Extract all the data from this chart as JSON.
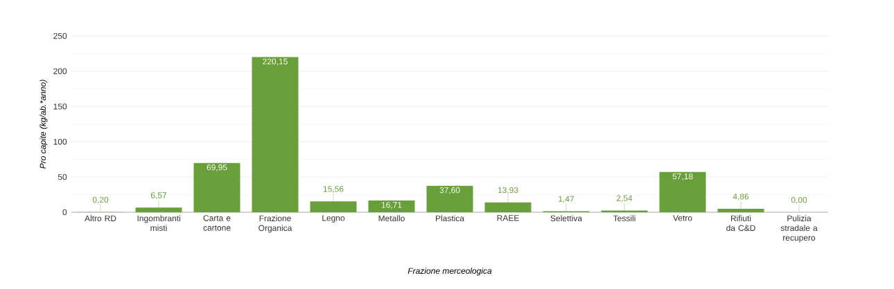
{
  "chart_data": {
    "type": "bar",
    "xlabel": "Frazione merceologica",
    "ylabel": "Pro capite (kg/ab.*anno)",
    "categories": [
      "Altro RD",
      "Ingombranti misti",
      "Carta e cartone",
      "Frazione Organica",
      "Legno",
      "Metallo",
      "Plastica",
      "RAEE",
      "Selettiva",
      "Tessili",
      "Vetro",
      "Rifiuti da C&D",
      "Pulizia stradale a recupero"
    ],
    "values": [
      0.2,
      6.57,
      69.95,
      220.15,
      15.56,
      16.71,
      37.6,
      13.93,
      1.47,
      2.54,
      57.18,
      4.86,
      0.0
    ],
    "value_labels": [
      "0,20",
      "6,57",
      "69,95",
      "220,15",
      "15,56",
      "16,71",
      "37,60",
      "13,93",
      "1,47",
      "2,54",
      "57,18",
      "4,86",
      "0,00"
    ],
    "color": "#689f38",
    "ylim": [
      0,
      250
    ],
    "yticks": [
      0,
      50,
      100,
      150,
      200,
      250
    ],
    "grid": "y"
  }
}
